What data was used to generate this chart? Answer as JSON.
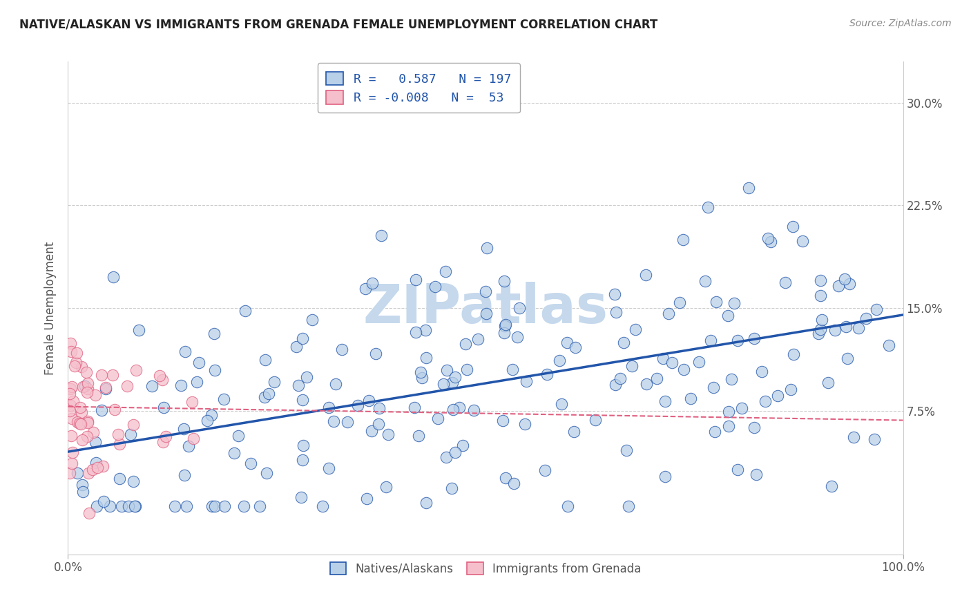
{
  "title": "NATIVE/ALASKAN VS IMMIGRANTS FROM GRENADA FEMALE UNEMPLOYMENT CORRELATION CHART",
  "source": "Source: ZipAtlas.com",
  "ylabel": "Female Unemployment",
  "r_native": 0.587,
  "n_native": 197,
  "r_grenada": -0.008,
  "n_grenada": 53,
  "blue_scatter_color": "#b8d0e8",
  "blue_line_color": "#2255aa",
  "pink_scatter_color": "#f5c0cc",
  "pink_line_color": "#e06080",
  "watermark": "ZIPatlas",
  "watermark_color": "#c5d8ec",
  "background_color": "#ffffff",
  "grid_color": "#cccccc",
  "title_color": "#222222",
  "axis_color": "#555555",
  "ytick_vals": [
    0,
    7.5,
    15.0,
    22.5,
    30.0
  ],
  "ytick_labels_right": [
    "",
    "7.5%",
    "15.0%",
    "22.5%",
    "30.0%"
  ],
  "xlim": [
    0,
    100
  ],
  "ylim": [
    -3,
    33
  ],
  "blue_slope": 0.1,
  "blue_intercept": 4.5,
  "pink_slope": -0.01,
  "pink_intercept": 7.8,
  "legend_text_1": "R =   0.587   N = 197",
  "legend_text_2": "R = -0.008   N =  53",
  "bottom_label_1": "Natives/Alaskans",
  "bottom_label_2": "Immigrants from Grenada"
}
